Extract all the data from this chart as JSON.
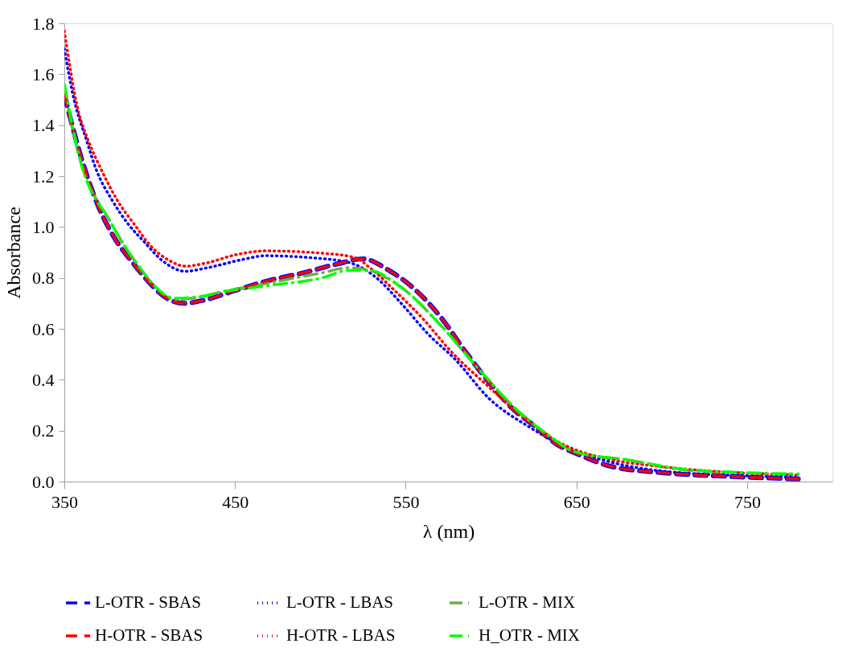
{
  "chart_data": {
    "type": "line",
    "xlabel": "λ (nm)",
    "ylabel": "Absorbance",
    "xlim": [
      350,
      800
    ],
    "xticks": [
      350,
      450,
      550,
      650,
      750
    ],
    "ylim": [
      0,
      1.8
    ],
    "yticks": [
      {
        "value": 0,
        "label": "0.0"
      },
      0.2,
      0.4,
      0.6,
      0.8,
      {
        "value": 1,
        "label": "1.0"
      },
      1.2,
      1.4,
      1.6,
      1.8
    ],
    "grid": false,
    "legend": "bottom",
    "marker": "none",
    "series": [
      {
        "name": "L-OTR - SBAS",
        "color": "#0000ff",
        "line_style": "dashed",
        "x": [
          350,
          360,
          370,
          380,
          390,
          400,
          410,
          420,
          430,
          450,
          470,
          490,
          510,
          525,
          540,
          550,
          570,
          585,
          600,
          612,
          625,
          640,
          650,
          670,
          700,
          740,
          780
        ],
        "values": [
          1.52,
          1.27,
          1.08,
          0.95,
          0.86,
          0.78,
          0.72,
          0.7,
          0.71,
          0.75,
          0.79,
          0.82,
          0.855,
          0.875,
          0.83,
          0.785,
          0.65,
          0.51,
          0.38,
          0.29,
          0.22,
          0.14,
          0.11,
          0.06,
          0.035,
          0.02,
          0.01
        ]
      },
      {
        "name": "L-OTR - LBAS",
        "color": "#0000ff",
        "line_style": "dotted",
        "x": [
          350,
          355,
          363,
          369,
          378,
          387,
          397,
          407,
          421,
          434,
          453,
          468,
          493,
          517,
          532,
          548,
          563,
          579,
          599,
          621,
          644,
          674,
          702,
          752,
          780
        ],
        "values": [
          1.7,
          1.52,
          1.34,
          1.22,
          1.105,
          1.015,
          0.94,
          0.87,
          0.826,
          0.84,
          0.87,
          0.887,
          0.88,
          0.86,
          0.805,
          0.695,
          0.58,
          0.48,
          0.325,
          0.22,
          0.136,
          0.07,
          0.04,
          0.022,
          0.016
        ]
      },
      {
        "name": "L-OTR - MIX",
        "color": "#70ad47",
        "line_style": "dashdot",
        "x": [
          350,
          359,
          377,
          392,
          415,
          433,
          439,
          470,
          501,
          517,
          528,
          548,
          571,
          593,
          613,
          634,
          649,
          680,
          711,
          742,
          780
        ],
        "values": [
          1.53,
          1.27,
          1.02,
          0.86,
          0.715,
          0.73,
          0.74,
          0.78,
          0.82,
          0.84,
          0.83,
          0.76,
          0.61,
          0.44,
          0.295,
          0.18,
          0.117,
          0.085,
          0.047,
          0.035,
          0.028
        ]
      },
      {
        "name": "H-OTR - SBAS",
        "color": "#ff0000",
        "line_style": "dashed",
        "x": [
          350,
          360,
          370,
          380,
          390,
          400,
          410,
          420,
          430,
          450,
          470,
          490,
          510,
          525,
          540,
          550,
          570,
          585,
          600,
          612,
          625,
          640,
          650,
          670,
          700,
          740,
          780
        ],
        "values": [
          1.52,
          1.27,
          1.08,
          0.95,
          0.86,
          0.78,
          0.72,
          0.7,
          0.71,
          0.75,
          0.79,
          0.82,
          0.855,
          0.875,
          0.83,
          0.785,
          0.65,
          0.51,
          0.38,
          0.29,
          0.22,
          0.14,
          0.11,
          0.06,
          0.035,
          0.02,
          0.01
        ]
      },
      {
        "name": "H-OTR - LBAS",
        "color": "#ff0000",
        "line_style": "dotted",
        "x": [
          350,
          358,
          364,
          372,
          381,
          391,
          400,
          411,
          421,
          434,
          450,
          468,
          501,
          520,
          529,
          542,
          552,
          560,
          576,
          599,
          621,
          641,
          649,
          671,
          702,
          752,
          780
        ],
        "values": [
          1.77,
          1.46,
          1.34,
          1.22,
          1.105,
          1.01,
          0.93,
          0.87,
          0.846,
          0.86,
          0.89,
          0.906,
          0.897,
          0.88,
          0.84,
          0.76,
          0.695,
          0.64,
          0.515,
          0.37,
          0.24,
          0.15,
          0.126,
          0.085,
          0.057,
          0.032,
          0.025
        ]
      },
      {
        "name": "H_OTR - MIX",
        "color": "#00ff00",
        "line_style": "dashdot",
        "x": [
          350,
          359,
          377,
          392,
          415,
          433,
          439,
          470,
          501,
          517,
          528,
          548,
          571,
          593,
          613,
          634,
          649,
          680,
          711,
          742,
          780
        ],
        "values": [
          1.56,
          1.27,
          1.02,
          0.86,
          0.72,
          0.73,
          0.74,
          0.77,
          0.8,
          0.83,
          0.83,
          0.76,
          0.61,
          0.44,
          0.295,
          0.18,
          0.117,
          0.085,
          0.05,
          0.037,
          0.03
        ]
      }
    ]
  }
}
